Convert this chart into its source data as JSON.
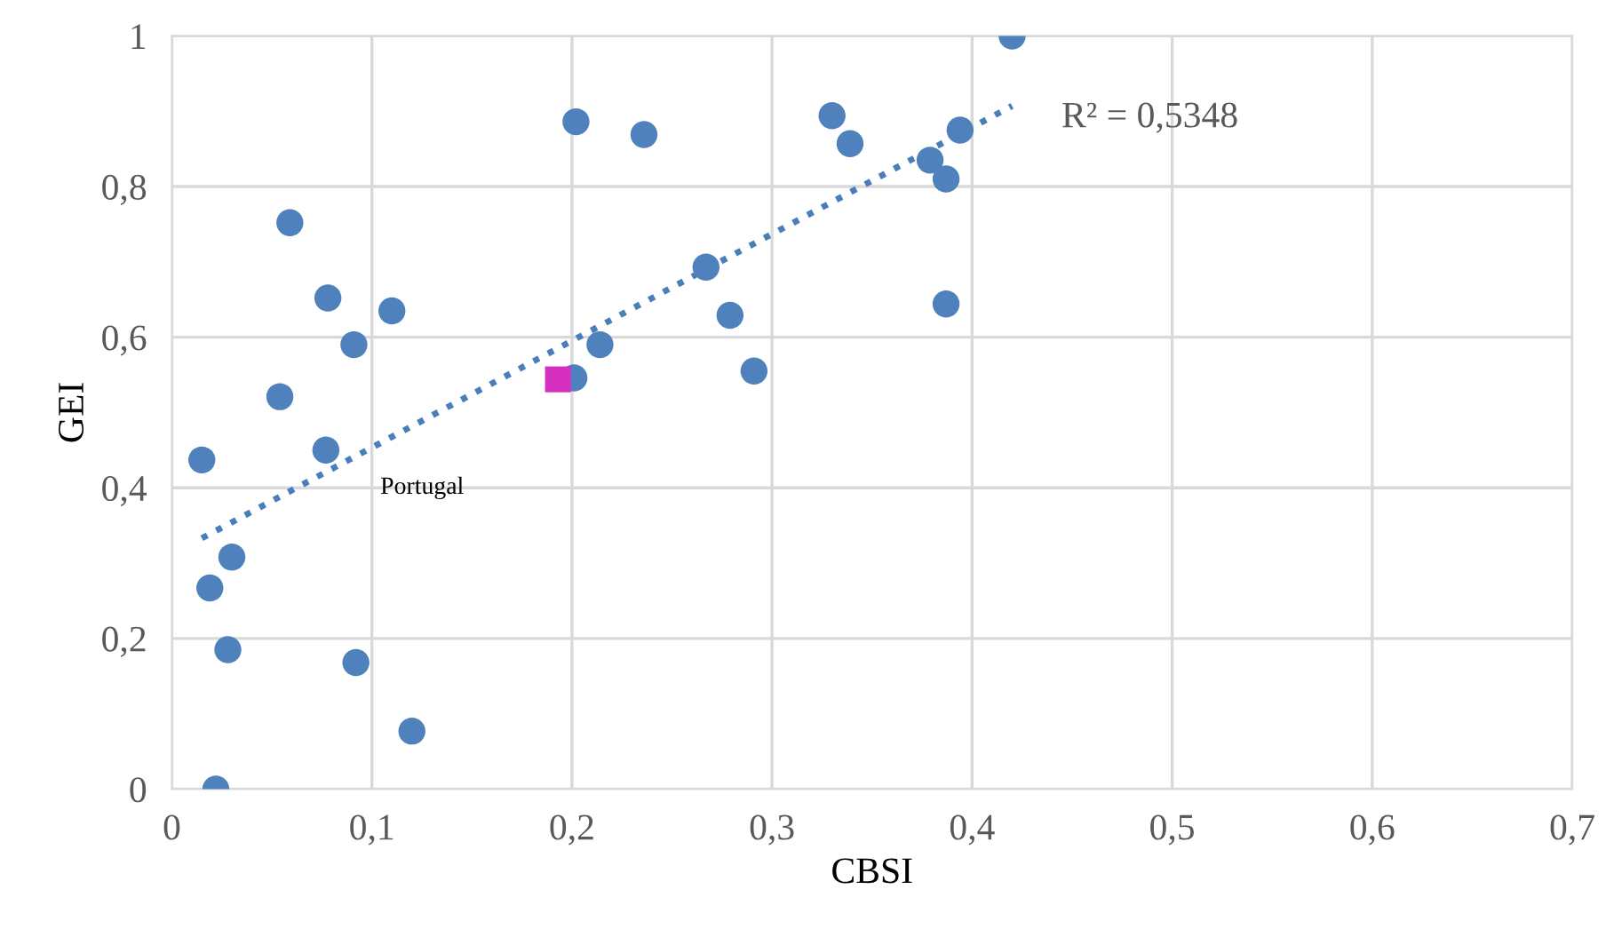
{
  "chart_data": {
    "type": "scatter",
    "xlabel": "CBSI",
    "ylabel": "GEI",
    "xlim": [
      0,
      0.7
    ],
    "ylim": [
      0,
      1
    ],
    "xticks": [
      0,
      {
        "value": 0.1,
        "label": "0,1"
      },
      {
        "value": 0.2,
        "label": "0,2"
      },
      {
        "value": 0.3,
        "label": "0,3"
      },
      {
        "value": 0.4,
        "label": "0,4"
      },
      {
        "value": 0.5,
        "label": "0,5"
      },
      {
        "value": 0.6,
        "label": "0,6"
      },
      {
        "value": 0.7,
        "label": "0,7"
      }
    ],
    "yticks": [
      0,
      {
        "value": 0.2,
        "label": "0,2"
      },
      {
        "value": 0.4,
        "label": "0,4"
      },
      {
        "value": 0.6,
        "label": "0,6"
      },
      {
        "value": 0.8,
        "label": "0,8"
      },
      1
    ],
    "grid": true,
    "series": [
      {
        "color": "#4f81bd",
        "marker": "circle",
        "x": [
          0.202,
          0.236,
          0.059,
          0.078,
          0.11,
          0.091,
          0.054,
          0.214,
          0.201,
          0.077,
          0.015,
          0.03,
          0.019,
          0.028,
          0.092,
          0.12,
          0.022,
          0.42,
          0.33,
          0.339,
          0.394,
          0.379,
          0.387,
          0.267,
          0.279,
          0.291,
          0.387
        ],
        "values": [
          0.886,
          0.869,
          0.752,
          0.652,
          0.635,
          0.59,
          0.521,
          0.59,
          0.546,
          0.45,
          0.437,
          0.308,
          0.267,
          0.185,
          0.168,
          0.077,
          0.0,
          1.0,
          0.894,
          0.857,
          0.875,
          0.835,
          0.81,
          0.693,
          0.629,
          0.555,
          0.644
        ]
      },
      {
        "name": "Portugal",
        "color": "#d62fbf",
        "marker": "square",
        "x": [
          0.193
        ],
        "values": [
          0.544
        ]
      },
      {
        "type": "line",
        "color": "#4a7ebb",
        "line_style": "dotted",
        "marker": "none",
        "x": [
          0.015,
          0.42
        ],
        "values": [
          0.333,
          0.907
        ]
      }
    ],
    "annotations": [
      {
        "text": "R² = 0,5348",
        "x": 0.42,
        "y": 0.907
      }
    ]
  }
}
